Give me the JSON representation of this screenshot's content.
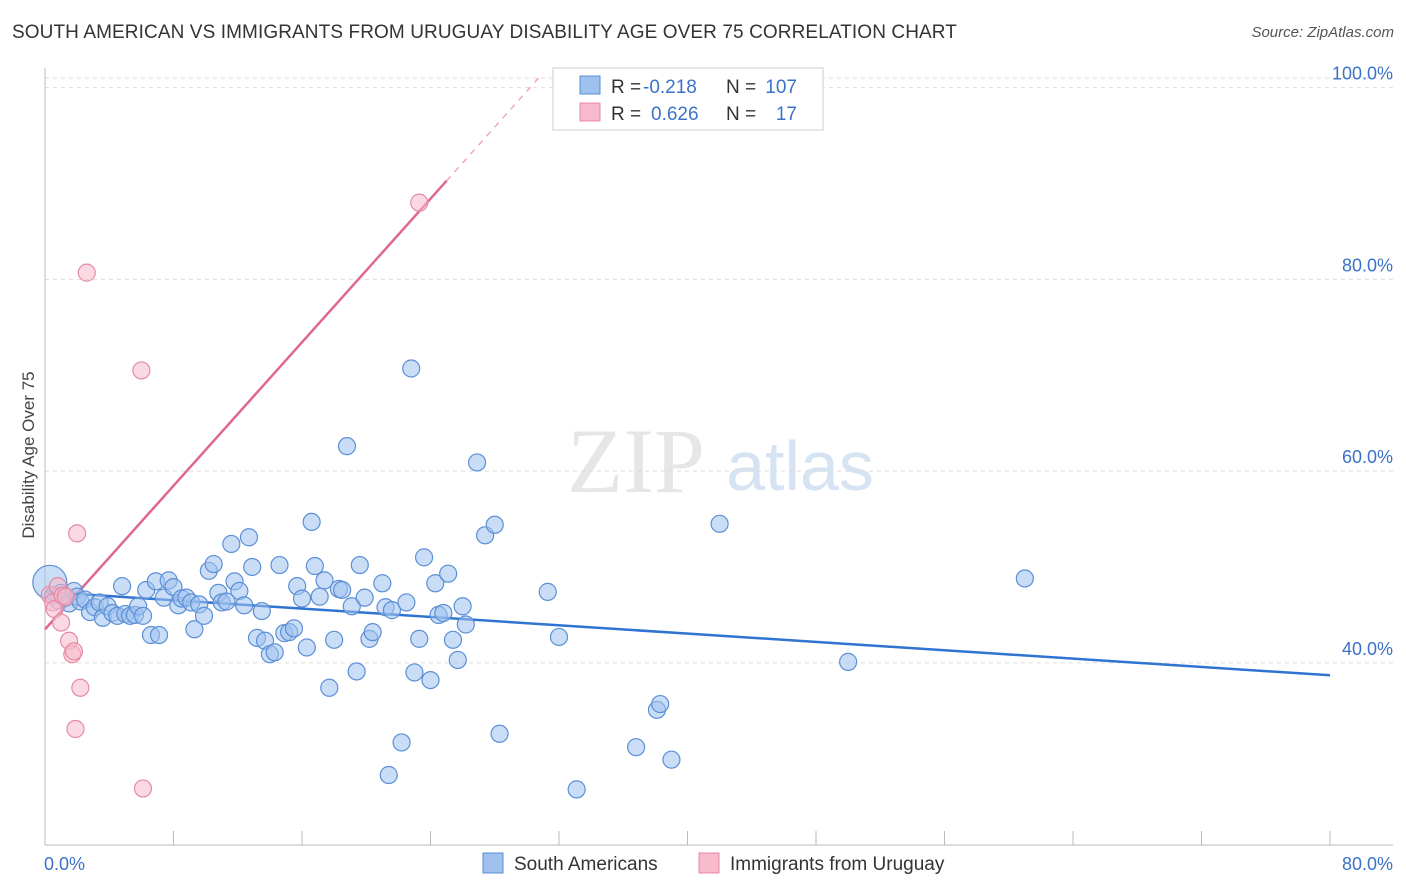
{
  "header": {
    "title": "SOUTH AMERICAN VS IMMIGRANTS FROM URUGUAY DISABILITY AGE OVER 75 CORRELATION CHART",
    "source": "Source: ZipAtlas.com"
  },
  "watermark": {
    "zip": "ZIP",
    "atlas": "atlas"
  },
  "stats_box": {
    "rows": [
      {
        "r_label": "R =",
        "r_value": "-0.218",
        "n_label": "N =",
        "n_value": "107",
        "color": "#9ec1ee"
      },
      {
        "r_label": "R =",
        "r_value": "0.626",
        "n_label": "N =",
        "n_value": "17",
        "color": "#f7b9cb"
      }
    ]
  },
  "colors": {
    "blue_fill": "#9ec1ee",
    "blue_stroke": "#5b8fd6",
    "blue_line": "#2f74d0",
    "pink_fill": "#f7b9cb",
    "pink_stroke": "#e58aa6",
    "pink_line": "#e0678f",
    "axis_text": "#3b72c8",
    "grid": "#dddddd"
  },
  "chart_data": {
    "type": "scatter",
    "title": "SOUTH AMERICAN VS IMMIGRANTS FROM URUGUAY DISABILITY AGE OVER 75 CORRELATION CHART",
    "xlabel": "",
    "ylabel": "Disability Age Over 75",
    "xlim": [
      0,
      80
    ],
    "ylim": [
      21,
      101
    ],
    "x_tick_labels": [
      "0.0%",
      "80.0%"
    ],
    "y_ticks": [
      40,
      60,
      80,
      100
    ],
    "y_tick_labels": [
      "40.0%",
      "60.0%",
      "80.0%",
      "100.0%"
    ],
    "grid": true,
    "legend_position": "bottom-center",
    "series": [
      {
        "name": "South Americans",
        "color": "#9ec1ee",
        "r": -0.218,
        "n": 107,
        "trend": {
          "x": [
            0,
            80
          ],
          "y": [
            47.4,
            38.7
          ]
        },
        "points": [
          [
            0.3,
            48.4
          ],
          [
            0.5,
            47.0
          ],
          [
            0.8,
            46.5
          ],
          [
            1.0,
            47.3
          ],
          [
            1.3,
            46.8
          ],
          [
            1.5,
            46.2
          ],
          [
            1.8,
            47.5
          ],
          [
            2.0,
            46.9
          ],
          [
            2.2,
            46.4
          ],
          [
            2.5,
            46.6
          ],
          [
            2.8,
            45.3
          ],
          [
            3.1,
            45.8
          ],
          [
            3.4,
            46.3
          ],
          [
            3.6,
            44.7
          ],
          [
            3.9,
            45.9
          ],
          [
            4.2,
            45.2
          ],
          [
            4.5,
            44.9
          ],
          [
            4.8,
            48.0
          ],
          [
            5.0,
            45.1
          ],
          [
            5.3,
            44.9
          ],
          [
            5.6,
            45.0
          ],
          [
            5.8,
            45.9
          ],
          [
            6.1,
            44.9
          ],
          [
            6.3,
            47.6
          ],
          [
            6.6,
            42.9
          ],
          [
            6.9,
            48.5
          ],
          [
            7.1,
            42.9
          ],
          [
            7.4,
            46.8
          ],
          [
            7.7,
            48.6
          ],
          [
            8.0,
            47.9
          ],
          [
            8.3,
            46.0
          ],
          [
            8.5,
            46.7
          ],
          [
            8.8,
            46.8
          ],
          [
            9.1,
            46.3
          ],
          [
            9.3,
            43.5
          ],
          [
            9.6,
            46.1
          ],
          [
            9.9,
            44.9
          ],
          [
            10.2,
            49.6
          ],
          [
            10.5,
            50.3
          ],
          [
            10.8,
            47.3
          ],
          [
            11.0,
            46.3
          ],
          [
            11.3,
            46.4
          ],
          [
            11.6,
            52.4
          ],
          [
            11.8,
            48.5
          ],
          [
            12.1,
            47.5
          ],
          [
            12.4,
            46.0
          ],
          [
            12.7,
            53.1
          ],
          [
            12.9,
            50.0
          ],
          [
            13.2,
            42.6
          ],
          [
            13.5,
            45.4
          ],
          [
            13.7,
            42.3
          ],
          [
            14.0,
            40.9
          ],
          [
            14.3,
            41.1
          ],
          [
            14.6,
            50.2
          ],
          [
            14.9,
            43.1
          ],
          [
            15.2,
            43.2
          ],
          [
            15.5,
            43.6
          ],
          [
            15.7,
            48.0
          ],
          [
            16.0,
            46.7
          ],
          [
            16.3,
            41.6
          ],
          [
            16.6,
            54.7
          ],
          [
            16.8,
            50.1
          ],
          [
            17.1,
            46.9
          ],
          [
            17.4,
            48.6
          ],
          [
            17.7,
            37.4
          ],
          [
            18.0,
            42.4
          ],
          [
            18.3,
            47.7
          ],
          [
            18.5,
            47.6
          ],
          [
            18.8,
            62.6
          ],
          [
            19.1,
            45.9
          ],
          [
            19.4,
            39.1
          ],
          [
            19.6,
            50.2
          ],
          [
            19.9,
            46.8
          ],
          [
            20.2,
            42.5
          ],
          [
            20.4,
            43.2
          ],
          [
            21.0,
            48.3
          ],
          [
            21.2,
            45.8
          ],
          [
            21.4,
            28.3
          ],
          [
            21.6,
            45.5
          ],
          [
            22.2,
            31.7
          ],
          [
            22.5,
            46.3
          ],
          [
            22.8,
            70.7
          ],
          [
            23.0,
            39.0
          ],
          [
            23.3,
            42.5
          ],
          [
            23.6,
            51.0
          ],
          [
            24.0,
            38.2
          ],
          [
            24.3,
            48.3
          ],
          [
            24.5,
            45.0
          ],
          [
            24.8,
            45.2
          ],
          [
            25.1,
            49.3
          ],
          [
            25.4,
            42.4
          ],
          [
            25.7,
            40.3
          ],
          [
            26.0,
            45.9
          ],
          [
            26.2,
            44.0
          ],
          [
            26.9,
            60.9
          ],
          [
            27.4,
            53.3
          ],
          [
            28.0,
            54.4
          ],
          [
            28.3,
            32.6
          ],
          [
            31.3,
            47.4
          ],
          [
            32.0,
            42.7
          ],
          [
            33.1,
            26.8
          ],
          [
            36.8,
            31.2
          ],
          [
            38.1,
            35.1
          ],
          [
            38.3,
            35.7
          ],
          [
            39.0,
            29.9
          ],
          [
            42.0,
            54.5
          ],
          [
            50.0,
            40.1
          ],
          [
            61.0,
            48.8
          ]
        ]
      },
      {
        "name": "Immigrants from Uruguay",
        "color": "#f7b9cb",
        "r": 0.626,
        "n": 17,
        "trend": {
          "x": [
            0,
            31
          ],
          "y": [
            43.5,
            101.5
          ],
          "solid_until_x": 25
        },
        "points": [
          [
            0.3,
            47.1
          ],
          [
            0.5,
            46.3
          ],
          [
            0.6,
            45.6
          ],
          [
            0.8,
            48.0
          ],
          [
            1.0,
            44.2
          ],
          [
            1.1,
            47.0
          ],
          [
            1.3,
            46.9
          ],
          [
            1.5,
            42.3
          ],
          [
            1.7,
            40.9
          ],
          [
            1.8,
            41.2
          ],
          [
            1.9,
            33.1
          ],
          [
            2.0,
            53.5
          ],
          [
            2.2,
            37.4
          ],
          [
            2.6,
            80.7
          ],
          [
            6.0,
            70.5
          ],
          [
            6.1,
            26.9
          ],
          [
            23.3,
            88.0
          ]
        ]
      }
    ]
  }
}
